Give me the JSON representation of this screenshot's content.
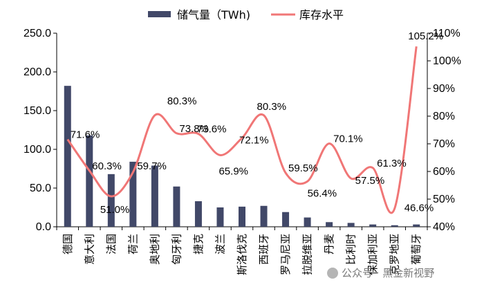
{
  "chart_data": {
    "type": "bar+line",
    "categories": [
      "德国",
      "意大利",
      "法国",
      "荷兰",
      "奥地利",
      "匈牙利",
      "捷克",
      "波兰",
      "斯洛伐克",
      "西班牙",
      "罗马尼亚",
      "拉脱维亚",
      "丹麦",
      "比利时",
      "保加利亚",
      "克罗地亚",
      "葡萄牙"
    ],
    "series": [
      {
        "name": "储气量（TWh)",
        "type": "bar",
        "axis": "left",
        "color": "#414868",
        "values": [
          182,
          118,
          68,
          84,
          79,
          52,
          33,
          25,
          26,
          27,
          19,
          12,
          6,
          5,
          3,
          2,
          3
        ]
      },
      {
        "name": "库存水平",
        "type": "line",
        "axis": "right",
        "color": "#f07676",
        "values": [
          71.6,
          60.3,
          51.0,
          59.7,
          80.3,
          73.8,
          73.6,
          65.9,
          72.1,
          80.3,
          59.5,
          56.4,
          70.1,
          57.5,
          61.3,
          46.6,
          105.2
        ],
        "labels": [
          "71.6%",
          "60.3%",
          "51.0%",
          "59.7%",
          "80.3%",
          "73.8%",
          "73.6%",
          "65.9%",
          "72.1%",
          "80.3%",
          "59.5%",
          "56.4%",
          "70.1%",
          "57.5%",
          "61.3%",
          "46.6%",
          "105.2%"
        ]
      }
    ],
    "y_left": {
      "min": 0,
      "max": 250,
      "ticks": [
        "0.0",
        "50.0",
        "100.0",
        "150.0",
        "200.0",
        "250.0"
      ]
    },
    "y_right": {
      "min": 40,
      "max": 110,
      "ticks": [
        "40%",
        "50%",
        "60%",
        "70%",
        "80%",
        "90%",
        "100%",
        "110%"
      ]
    },
    "legend_position": "top",
    "grid": false
  },
  "watermark": {
    "text": "公众号 · 黑金新视野"
  }
}
